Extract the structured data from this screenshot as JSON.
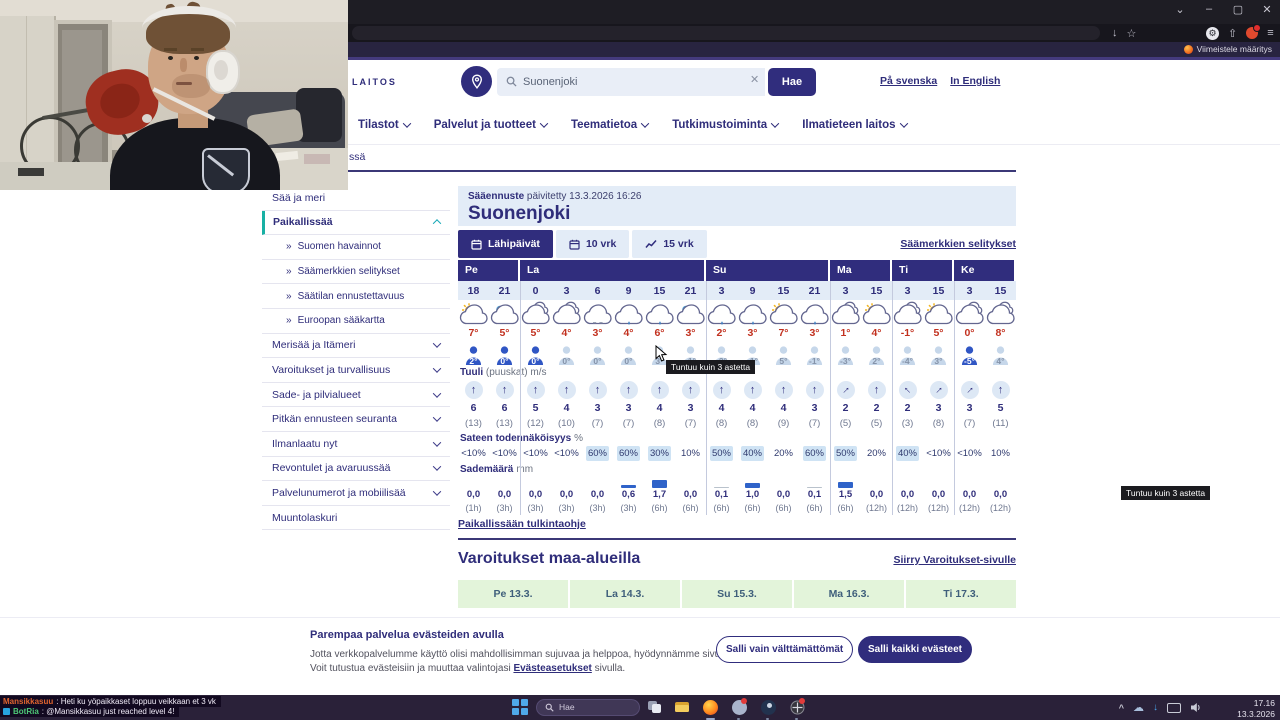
{
  "colors": {
    "accent": "#302d7d",
    "light_blue": "#e3ecf7",
    "temp_red": "#c2311f",
    "prob_highlight": "#cfe3f4",
    "warn_green": "#e3f4da",
    "active_teal": "#18b0a4",
    "bar_blue": "#2f63c9",
    "bar_gray": "#b9c2cc"
  },
  "browser": {
    "controls": {
      "tabs_list": "⌄",
      "minimize": "–",
      "maximize": "▢",
      "close": "✕"
    },
    "icons": {
      "save_page": "↓",
      "bookmark_star": "☆",
      "extension": "⚙",
      "share": "⇧",
      "menu": "≡"
    },
    "setup_note": "Viimeistele määritys"
  },
  "header": {
    "logo_partial": "LAITOS",
    "search_value": "Suonenjoki",
    "clear_icon": "✕",
    "submit": "Hae",
    "lang_swedish": "På svenska",
    "lang_english": "In English"
  },
  "nav_items": [
    "Tilastot",
    "Palvelut ja tuotteet",
    "Teematietoa",
    "Tutkimustoiminta",
    "Ilmatieteen laitos"
  ],
  "breadcrumb_tail": "ssä",
  "sidebar": {
    "items": [
      {
        "label": "Sää ja meri",
        "type": "plain"
      },
      {
        "label": "Paikallissää",
        "type": "active"
      },
      {
        "label": "Suomen havainnot",
        "type": "sub"
      },
      {
        "label": "Säämerkkien selitykset",
        "type": "sub"
      },
      {
        "label": "Säätilan ennustettavuus",
        "type": "sub"
      },
      {
        "label": "Euroopan sääkartta",
        "type": "sub"
      },
      {
        "label": "Merisää ja Itämeri",
        "type": "exp"
      },
      {
        "label": "Varoitukset ja turvallisuus",
        "type": "exp"
      },
      {
        "label": "Sade- ja pilvialueet",
        "type": "exp"
      },
      {
        "label": "Pitkän ennusteen seuranta",
        "type": "exp"
      },
      {
        "label": "Ilmanlaatu nyt",
        "type": "exp"
      },
      {
        "label": "Revontulet ja avaruussää",
        "type": "exp"
      },
      {
        "label": "Palvelunumerot ja mobiilisää",
        "type": "exp"
      },
      {
        "label": "Muuntolaskuri",
        "type": "plain"
      }
    ]
  },
  "forecast_header": {
    "updated_bold": "Sääennuste",
    "updated_rest": " päivitetty 13.3.2026 16:26",
    "place": "Suonenjoki"
  },
  "tabs": [
    {
      "label": "Lähipäivät",
      "icon": "calendar",
      "active": true
    },
    {
      "label": "10 vrk",
      "icon": "calendar",
      "active": false
    },
    {
      "label": "15 vrk",
      "icon": "chart",
      "active": false
    }
  ],
  "legend_link": "Säämerkkien selitykset",
  "forecast": {
    "groups": [
      {
        "day": "Pe",
        "hours": [
          "18",
          "21"
        ]
      },
      {
        "day": "La",
        "hours": [
          "0",
          "3",
          "6",
          "9",
          "15",
          "21"
        ]
      },
      {
        "day": "Su",
        "hours": [
          "3",
          "9",
          "15",
          "21"
        ]
      },
      {
        "day": "Ma",
        "hours": [
          "3",
          "15"
        ]
      },
      {
        "day": "Ti",
        "hours": [
          "3",
          "15"
        ]
      },
      {
        "day": "Ke",
        "hours": [
          "3",
          "15"
        ]
      }
    ],
    "icons": [
      "sun-cloud",
      "moon-cloud",
      "cloudy",
      "cloudy",
      "drizzle",
      "rain",
      "rain",
      "moon-cloud",
      "rain",
      "rain",
      "sun-cloud",
      "rain",
      "cloudy",
      "sun-cloud",
      "cloudy",
      "sun-cloud",
      "cloudy",
      "cloudy"
    ],
    "temps": [
      "7°",
      "5°",
      "5°",
      "4°",
      "3°",
      "4°",
      "6°",
      "3°",
      "2°",
      "3°",
      "7°",
      "3°",
      "1°",
      "4°",
      "-1°",
      "5°",
      "0°",
      "8°"
    ],
    "feels": [
      "2°",
      "0°",
      "0°",
      "0°",
      "0°",
      "0°",
      "3°",
      "-1°",
      "-2°",
      "-1°",
      "5°",
      "-1°",
      "-3°",
      "2°",
      "-4°",
      "3°",
      "-5°",
      "4°"
    ],
    "feels_dark": [
      true,
      true,
      true,
      false,
      false,
      false,
      false,
      false,
      false,
      false,
      false,
      false,
      false,
      false,
      false,
      false,
      true,
      false
    ],
    "tooltip": "Tuntuu kuin 3 astetta",
    "wind_label": {
      "bold": "Tuuli",
      "rest": "(puuskat) m/s"
    },
    "wind_dirs": [
      0,
      0,
      0,
      0,
      0,
      0,
      0,
      0,
      0,
      0,
      0,
      0,
      45,
      0,
      -45,
      45,
      45,
      0
    ],
    "wind_speeds": [
      "6",
      "6",
      "5",
      "4",
      "3",
      "3",
      "4",
      "3",
      "4",
      "4",
      "4",
      "3",
      "2",
      "2",
      "2",
      "3",
      "3",
      "5"
    ],
    "wind_gusts": [
      "(13)",
      "(13)",
      "(12)",
      "(10)",
      "(7)",
      "(7)",
      "(8)",
      "(7)",
      "(8)",
      "(8)",
      "(9)",
      "(7)",
      "(5)",
      "(5)",
      "(3)",
      "(8)",
      "(7)",
      "(11)"
    ],
    "prob_label": {
      "bold": "Sateen todennäköisyys",
      "unit": "%"
    },
    "probs": [
      "<10%",
      "<10%",
      "<10%",
      "<10%",
      "60%",
      "60%",
      "30%",
      "10%",
      "50%",
      "40%",
      "20%",
      "60%",
      "50%",
      "20%",
      "40%",
      "<10%",
      "<10%",
      "10%"
    ],
    "prob_hl": [
      false,
      false,
      false,
      false,
      true,
      true,
      true,
      false,
      true,
      true,
      false,
      true,
      true,
      false,
      true,
      false,
      false,
      false
    ],
    "amount_label": {
      "bold": "Sademäärä",
      "unit": "mm"
    },
    "amounts": [
      "0,0",
      "0,0",
      "0,0",
      "0,0",
      "0,0",
      "0,6",
      "1,7",
      "0,0",
      "0,1",
      "1,0",
      "0,0",
      "0,1",
      "1,5",
      "0,0",
      "0,0",
      "0,0",
      "0,0",
      "0,0"
    ],
    "periods": [
      "(1h)",
      "(3h)",
      "(3h)",
      "(3h)",
      "(3h)",
      "(3h)",
      "(6h)",
      "(6h)",
      "(6h)",
      "(6h)",
      "(6h)",
      "(6h)",
      "(6h)",
      "(12h)",
      "(12h)",
      "(12h)",
      "(12h)",
      "(12h)"
    ],
    "bar_heights": [
      0,
      0,
      0,
      0,
      0,
      3,
      8,
      0,
      1,
      5,
      0,
      1,
      6,
      0,
      0,
      0,
      0,
      0
    ],
    "bar_gray": [
      false,
      false,
      false,
      false,
      false,
      false,
      false,
      false,
      true,
      false,
      false,
      true,
      false,
      false,
      false,
      false,
      false,
      false
    ]
  },
  "interpretation_link": "Paikallissään tulkintaohje",
  "warnings": {
    "title": "Varoitukset maa-alueilla",
    "link": "Siirry Varoitukset-sivulle",
    "days": [
      "Pe 13.3.",
      "La 14.3.",
      "Su 15.3.",
      "Ma 16.3.",
      "Ti 17.3."
    ]
  },
  "cookie": {
    "title": "Parempaa palvelua evästeiden avulla",
    "line1": "Jotta verkkopalvelumme käyttö olisi mahdollisimman sujuvaa ja helppoa, hyödynnämme sivustolla evästeitä.",
    "line2_pre": "Voit tutustua evästeisiin ja muuttaa valintojasi ",
    "line2_link": "Evästeasetukset",
    "line2_post": " sivulla.",
    "btn_secondary": "Salli vain välttämättömät",
    "btn_primary": "Salli kaikki evästeet"
  },
  "taskbar": {
    "search_placeholder": "Hae",
    "time": "17.16",
    "date": "13.3.2026"
  },
  "chat": {
    "line1_user": "Mansikkasuu",
    "line1_msg": ": Heti ku yöpaikkaset loppuu veikkaan et 3 vk",
    "line2_user": "BotRia",
    "line2_msg": ": @Mansikkasuu just reached level 4!"
  }
}
